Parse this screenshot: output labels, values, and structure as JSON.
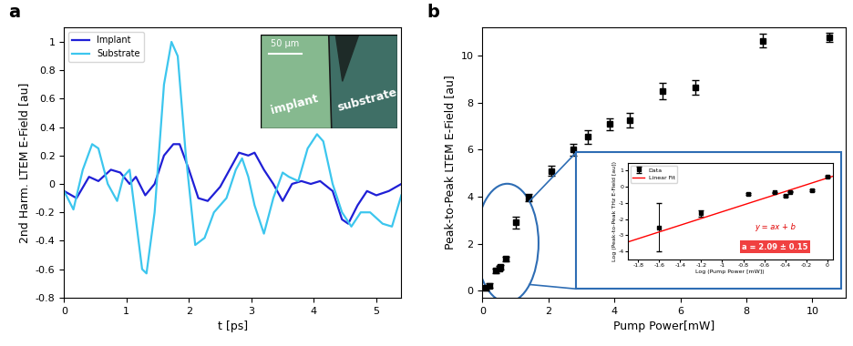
{
  "chart_data": [
    {
      "type": "line",
      "panel_label": "a",
      "x_label": "t [ps]",
      "y_label": "2nd Harm. LTEM E-Field [au]",
      "xlim": [
        0,
        5.4
      ],
      "xticks": [
        0,
        1,
        2,
        3,
        4,
        5
      ],
      "ylim": [
        -0.8,
        1.1
      ],
      "yticks": [
        -0.8,
        -0.6,
        -0.4,
        -0.2,
        0,
        0.2,
        0.4,
        0.6,
        0.8,
        1
      ],
      "legend": "upper left",
      "inset_image": {
        "scale_bar": "50 µm",
        "labels": [
          "implant",
          "substrate"
        ]
      },
      "series": [
        {
          "name": "Implant",
          "color": "#1f1fd6",
          "line_style": "solid",
          "x": [
            0,
            0.2,
            0.4,
            0.55,
            0.75,
            0.9,
            1.05,
            1.15,
            1.3,
            1.45,
            1.6,
            1.75,
            1.85,
            2.0,
            2.15,
            2.3,
            2.5,
            2.65,
            2.8,
            2.95,
            3.05,
            3.2,
            3.35,
            3.5,
            3.65,
            3.8,
            3.95,
            4.1,
            4.3,
            4.45,
            4.55,
            4.7,
            4.85,
            5.0,
            5.2,
            5.4
          ],
          "values": [
            -0.05,
            -0.1,
            0.05,
            0.02,
            0.1,
            0.08,
            0.0,
            0.05,
            -0.08,
            0.0,
            0.2,
            0.28,
            0.28,
            0.1,
            -0.1,
            -0.12,
            -0.02,
            0.1,
            0.22,
            0.2,
            0.22,
            0.1,
            0.0,
            -0.12,
            0.0,
            0.02,
            0.0,
            0.02,
            -0.05,
            -0.25,
            -0.28,
            -0.15,
            -0.05,
            -0.08,
            -0.05,
            0.0
          ]
        },
        {
          "name": "Substrate",
          "color": "#3cc6ee",
          "line_style": "solid",
          "x": [
            0,
            0.15,
            0.3,
            0.45,
            0.55,
            0.7,
            0.85,
            0.95,
            1.05,
            1.15,
            1.25,
            1.32,
            1.45,
            1.6,
            1.72,
            1.82,
            1.95,
            2.1,
            2.25,
            2.4,
            2.6,
            2.75,
            2.85,
            2.95,
            3.05,
            3.2,
            3.35,
            3.5,
            3.6,
            3.75,
            3.9,
            4.05,
            4.15,
            4.3,
            4.45,
            4.6,
            4.75,
            4.9,
            5.1,
            5.25,
            5.4
          ],
          "values": [
            -0.05,
            -0.18,
            0.1,
            0.28,
            0.25,
            0.0,
            -0.12,
            0.05,
            0.1,
            -0.25,
            -0.6,
            -0.63,
            -0.2,
            0.7,
            1.0,
            0.9,
            0.2,
            -0.43,
            -0.38,
            -0.2,
            -0.1,
            0.1,
            0.18,
            0.05,
            -0.15,
            -0.35,
            -0.1,
            0.08,
            0.05,
            0.02,
            0.25,
            0.35,
            0.3,
            0.0,
            -0.2,
            -0.3,
            -0.2,
            -0.2,
            -0.28,
            -0.3,
            -0.08
          ]
        }
      ]
    },
    {
      "type": "scatter",
      "panel_label": "b",
      "x_label": "Pump Power[mW]",
      "y_label": "Peak-to-Peak LTEM E-Field [au]",
      "xlim": [
        0,
        11
      ],
      "xticks": [
        0,
        2,
        4,
        6,
        8,
        10
      ],
      "ylim": [
        -0.3,
        11.2
      ],
      "yticks": [
        0,
        2,
        4,
        6,
        8,
        10
      ],
      "series": [
        {
          "color": "#000000",
          "marker": "square",
          "x": [
            0.1,
            0.2,
            0.4,
            0.5,
            0.55,
            0.7,
            1.0,
            1.4,
            2.1,
            2.75,
            3.2,
            3.85,
            4.45,
            5.45,
            6.45,
            8.5,
            10.5
          ],
          "values": [
            0.1,
            0.2,
            0.85,
            0.95,
            1.0,
            1.35,
            2.9,
            3.95,
            5.1,
            6.0,
            6.55,
            7.1,
            7.25,
            8.5,
            8.65,
            10.65,
            10.8
          ],
          "errors": [
            0.1,
            0.1,
            0.1,
            0.1,
            0.1,
            0.1,
            0.25,
            0.15,
            0.2,
            0.25,
            0.3,
            0.25,
            0.3,
            0.35,
            0.3,
            0.3,
            0.2
          ]
        }
      ]
    },
    {
      "type": "scatter",
      "x_label": "Log (Pump Power [mW])",
      "y_label": "Log (Peak-to-Peak THz E-Field [au])",
      "xlim": [
        -1.9,
        0.05
      ],
      "xticks": [
        -1.8,
        -1.6,
        -1.4,
        -1.2,
        -1,
        -0.8,
        -0.6,
        -0.4,
        -0.2,
        0
      ],
      "ylim": [
        -4.5,
        1.5
      ],
      "yticks": [
        -4,
        -3,
        -2,
        -1,
        0,
        1
      ],
      "legend": "upper left",
      "annotations": [
        "y = ax + b",
        "a = 2.09 ± 0.15"
      ],
      "series": [
        {
          "name": "Data",
          "type": "scatter",
          "color": "#000000",
          "marker": "square",
          "x": [
            -1.6,
            -1.2,
            -0.75,
            -0.5,
            -0.4,
            -0.35,
            -0.15,
            0.0
          ],
          "values": [
            -2.5,
            -1.65,
            -0.45,
            -0.35,
            -0.55,
            -0.3,
            -0.2,
            0.65
          ],
          "errors": [
            1.5,
            0.2,
            0.05,
            0.05,
            0.05,
            0.05,
            0.05,
            0.05
          ]
        },
        {
          "name": "Linear Fit",
          "type": "line",
          "color": "#ff0000",
          "line_style": "solid",
          "x": [
            -1.9,
            0.05
          ],
          "values": [
            -3.42,
            0.65
          ]
        }
      ]
    }
  ]
}
